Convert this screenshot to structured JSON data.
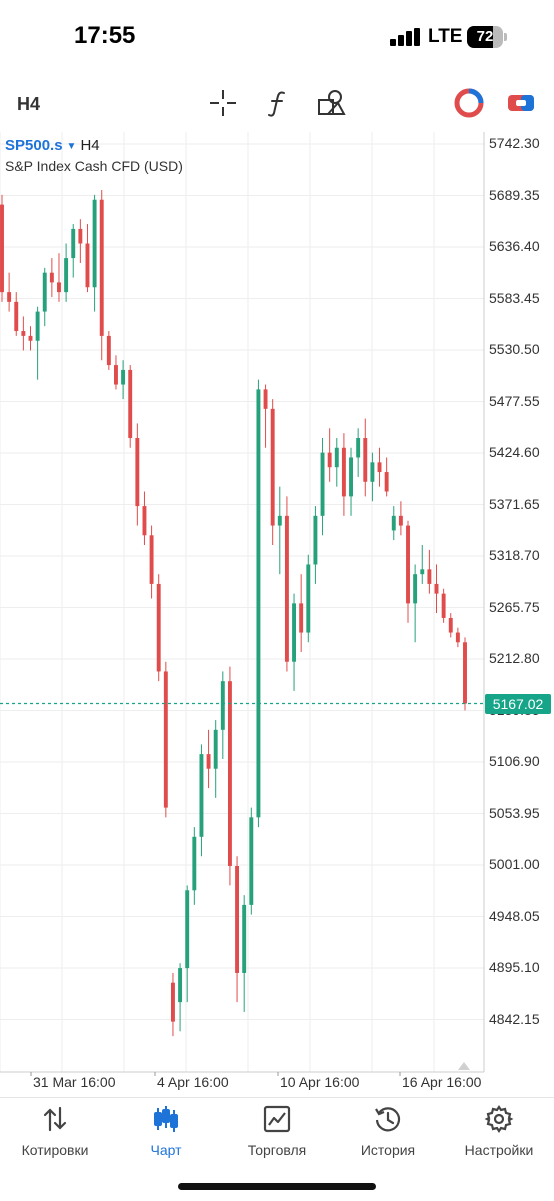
{
  "status_bar": {
    "time": "17:55",
    "network": "LTE",
    "battery": "72",
    "battery_fraction": 0.72
  },
  "toolbar": {
    "timeframe": "H4",
    "icons": [
      "crosshair-icon",
      "function-icon",
      "objects-icon",
      "mt-logo-icon",
      "trade-toggle-icon"
    ]
  },
  "chart": {
    "symbol": "SP500.s",
    "period": "H4",
    "caret": "▼",
    "description": "S&P Index Cash CFD (USD)",
    "price_ticks": [
      "5742.30",
      "5689.35",
      "5636.40",
      "5583.45",
      "5530.50",
      "5477.55",
      "5424.60",
      "5371.65",
      "5318.70",
      "5265.75",
      "5212.80",
      "5159.85",
      "5106.90",
      "5053.95",
      "5001.00",
      "4948.05",
      "4895.10",
      "4842.15"
    ],
    "time_ticks": [
      "31 Mar 16:00",
      "4 Apr 16:00",
      "10 Apr 16:00",
      "16 Apr 16:00"
    ],
    "current_price": "5167.02",
    "colors": {
      "bull": "#26a17b",
      "bear": "#e04c4c",
      "grid": "#eeeeee",
      "accent": "#1e73d8",
      "price_line": "#17a589"
    }
  },
  "chart_data": {
    "type": "candlestick",
    "title": "SP500.s H4",
    "subtitle": "S&P Index Cash CFD (USD)",
    "ylim": [
      4810,
      5765
    ],
    "current_price": 5167.02,
    "categories": [
      "31 Mar 16:00",
      "4 Apr 16:00",
      "10 Apr 16:00",
      "16 Apr 16:00"
    ],
    "ohlc": [
      [
        5680,
        5690,
        5580,
        5590
      ],
      [
        5590,
        5610,
        5570,
        5580
      ],
      [
        5580,
        5590,
        5545,
        5550
      ],
      [
        5550,
        5565,
        5530,
        5545
      ],
      [
        5545,
        5555,
        5530,
        5540
      ],
      [
        5540,
        5575,
        5500,
        5570
      ],
      [
        5570,
        5615,
        5555,
        5610
      ],
      [
        5610,
        5625,
        5585,
        5600
      ],
      [
        5600,
        5630,
        5580,
        5590
      ],
      [
        5590,
        5640,
        5580,
        5625
      ],
      [
        5625,
        5660,
        5605,
        5655
      ],
      [
        5655,
        5665,
        5620,
        5640
      ],
      [
        5640,
        5660,
        5590,
        5595
      ],
      [
        5595,
        5690,
        5570,
        5685
      ],
      [
        5685,
        5695,
        5520,
        5545
      ],
      [
        5545,
        5550,
        5510,
        5515
      ],
      [
        5515,
        5525,
        5490,
        5495
      ],
      [
        5495,
        5520,
        5480,
        5510
      ],
      [
        5510,
        5515,
        5430,
        5440
      ],
      [
        5440,
        5455,
        5350,
        5370
      ],
      [
        5370,
        5385,
        5330,
        5340
      ],
      [
        5340,
        5350,
        5275,
        5290
      ],
      [
        5290,
        5300,
        5190,
        5200
      ],
      [
        5200,
        5210,
        5050,
        5060
      ],
      [
        4880,
        4890,
        4825,
        4840
      ],
      [
        4860,
        4900,
        4830,
        4895
      ],
      [
        4895,
        4980,
        4860,
        4975
      ],
      [
        4975,
        5040,
        4960,
        5030
      ],
      [
        5030,
        5125,
        5010,
        5115
      ],
      [
        5115,
        5140,
        5080,
        5100
      ],
      [
        5100,
        5150,
        5070,
        5140
      ],
      [
        5140,
        5200,
        5110,
        5190
      ],
      [
        5190,
        5205,
        4980,
        5000
      ],
      [
        5000,
        5010,
        4860,
        4890
      ],
      [
        4890,
        4970,
        4850,
        4960
      ],
      [
        4960,
        5060,
        4950,
        5050
      ],
      [
        5050,
        5500,
        5040,
        5490
      ],
      [
        5490,
        5495,
        5430,
        5470
      ],
      [
        5470,
        5480,
        5330,
        5350
      ],
      [
        5350,
        5390,
        5300,
        5360
      ],
      [
        5360,
        5380,
        5200,
        5210
      ],
      [
        5210,
        5280,
        5180,
        5270
      ],
      [
        5270,
        5300,
        5220,
        5240
      ],
      [
        5240,
        5320,
        5230,
        5310
      ],
      [
        5310,
        5370,
        5290,
        5360
      ],
      [
        5360,
        5440,
        5340,
        5425
      ],
      [
        5425,
        5450,
        5395,
        5410
      ],
      [
        5410,
        5440,
        5390,
        5430
      ],
      [
        5430,
        5445,
        5360,
        5380
      ],
      [
        5380,
        5430,
        5360,
        5420
      ],
      [
        5420,
        5450,
        5400,
        5440
      ],
      [
        5440,
        5460,
        5380,
        5395
      ],
      [
        5395,
        5425,
        5375,
        5415
      ],
      [
        5415,
        5430,
        5390,
        5405
      ],
      [
        5405,
        5420,
        5380,
        5385
      ],
      [
        5345,
        5370,
        5335,
        5360
      ],
      [
        5360,
        5375,
        5340,
        5350
      ],
      [
        5350,
        5355,
        5250,
        5270
      ],
      [
        5270,
        5310,
        5230,
        5300
      ],
      [
        5300,
        5330,
        5290,
        5305
      ],
      [
        5305,
        5325,
        5280,
        5290
      ],
      [
        5290,
        5310,
        5260,
        5280
      ],
      [
        5280,
        5285,
        5250,
        5255
      ],
      [
        5255,
        5260,
        5235,
        5240
      ],
      [
        5240,
        5245,
        5225,
        5230
      ],
      [
        5230,
        5235,
        5160,
        5167
      ]
    ]
  },
  "nav": {
    "items": [
      {
        "label": "Котировки",
        "icon": "quotes-icon"
      },
      {
        "label": "Чарт",
        "icon": "chart-icon",
        "active": true
      },
      {
        "label": "Торговля",
        "icon": "trade-icon"
      },
      {
        "label": "История",
        "icon": "history-icon"
      },
      {
        "label": "Настройки",
        "icon": "settings-icon"
      }
    ]
  }
}
